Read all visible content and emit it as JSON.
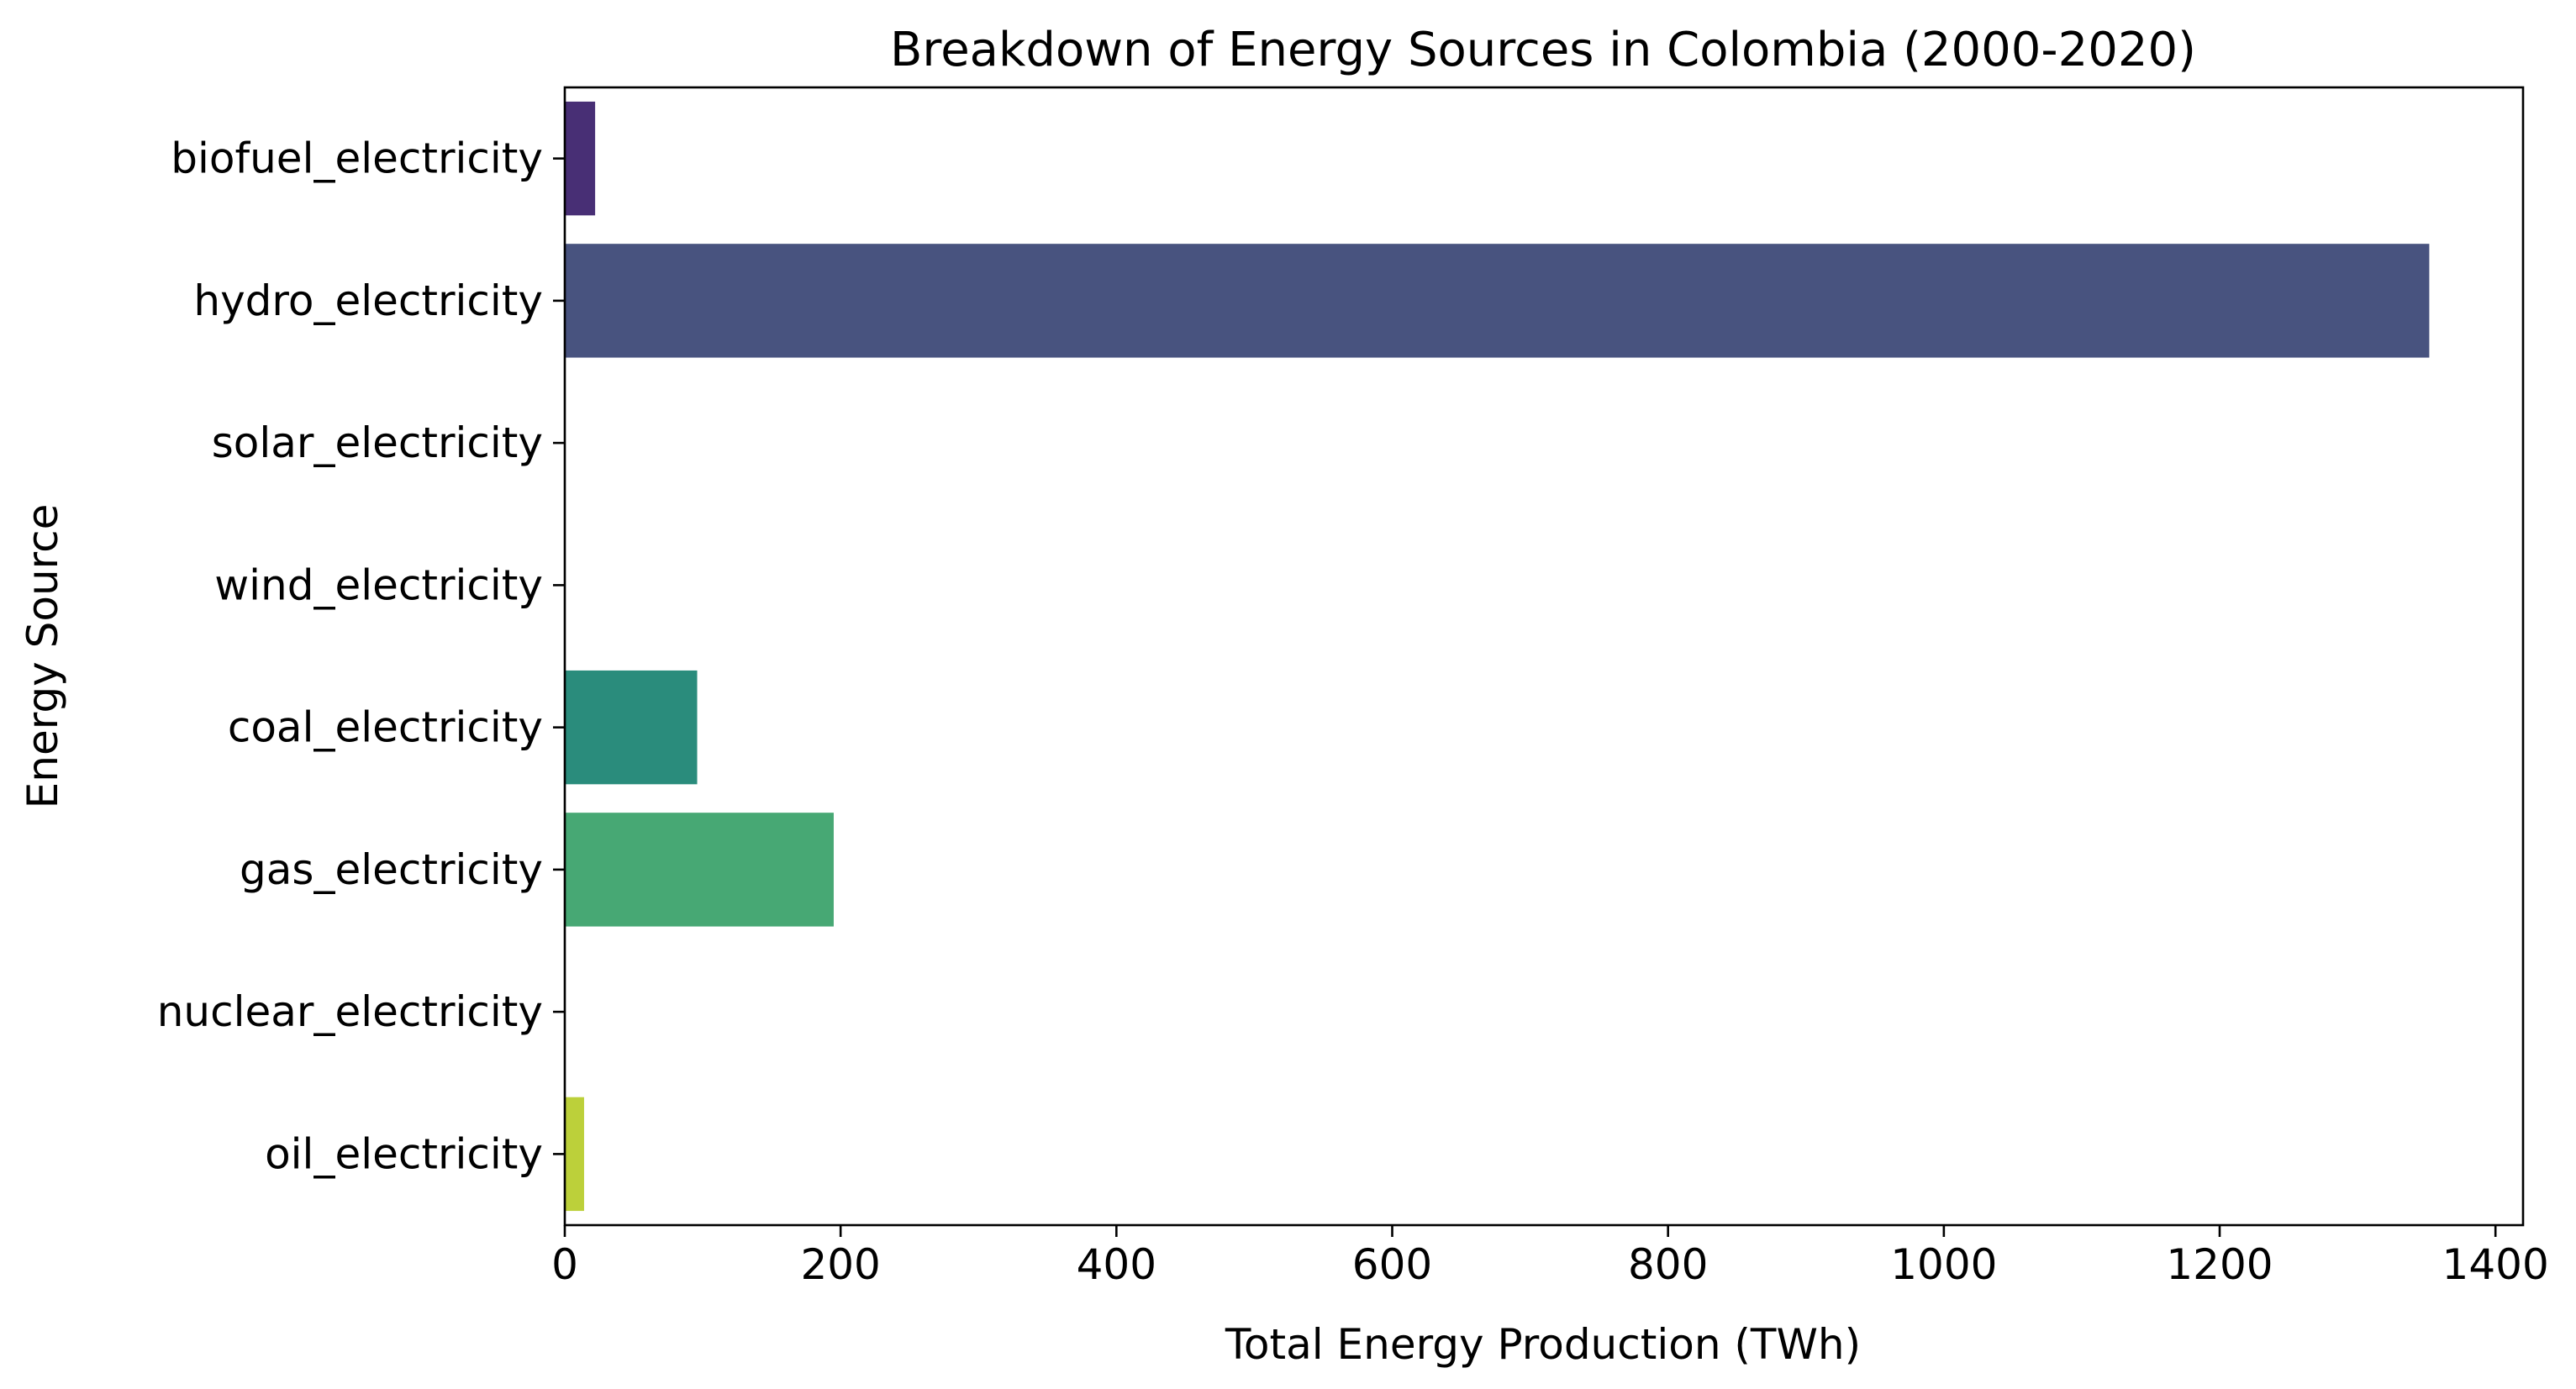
{
  "chart_data": {
    "type": "bar",
    "orientation": "horizontal",
    "title": "Breakdown of Energy Sources in Colombia (2000-2020)",
    "xlabel": "Total Energy Production (TWh)",
    "ylabel": "Energy Source",
    "xlim": [
      0,
      1420
    ],
    "xticks": [
      0,
      200,
      400,
      600,
      800,
      1000,
      1200,
      1400
    ],
    "grid": false,
    "categories": [
      "biofuel_electricity",
      "hydro_electricity",
      "solar_electricity",
      "wind_electricity",
      "coal_electricity",
      "gas_electricity",
      "nuclear_electricity",
      "oil_electricity"
    ],
    "values": [
      22,
      1352,
      0.3,
      0.5,
      96,
      195,
      0,
      14
    ],
    "colors": [
      "#482f75",
      "#48537f",
      "#3c6f8d",
      "#2f8c8c",
      "#2a8c7c",
      "#47a874",
      "#8dc843",
      "#bcd03a"
    ]
  }
}
